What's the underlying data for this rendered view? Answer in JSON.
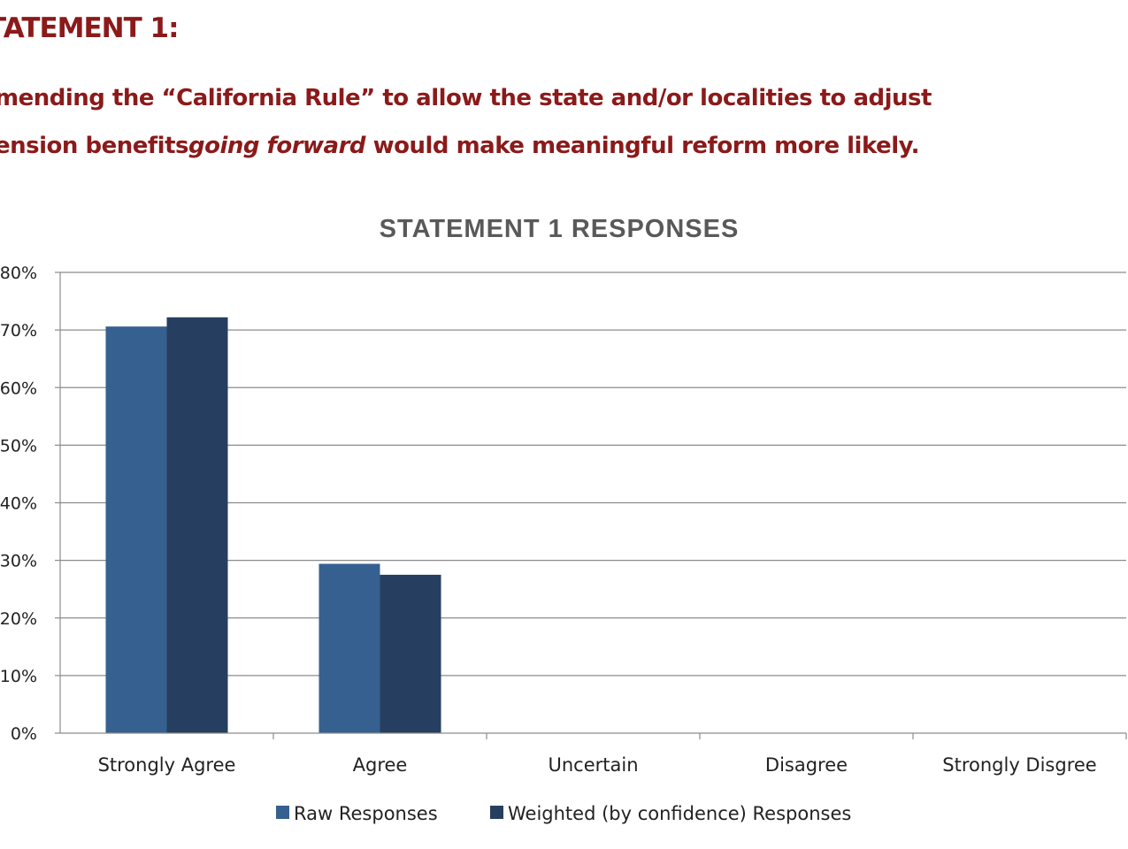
{
  "heading": "TATEMENT 1:",
  "statement": {
    "line1": "mending the “California Rule” to allow the state and/or localities to adjust",
    "line2_start": "ension benefits",
    "line2_emphasis": "going forward",
    "line2_end": " would make meaningful reform more likely."
  },
  "colors": {
    "heading": "#8b1a1a",
    "raw_series": "#36608f",
    "weighted_series": "#263f60",
    "gridline": "#8c8c8c",
    "chart_title": "#595959"
  },
  "chart_data": {
    "type": "bar",
    "title": "STATEMENT  1 RESPONSES",
    "categories": [
      "Strongly Agree",
      "Agree",
      "Uncertain",
      "Disagree",
      "Strongly Disgree"
    ],
    "series": [
      {
        "name": "Raw Responses",
        "values": [
          70.6,
          29.4,
          0,
          0,
          0
        ]
      },
      {
        "name": "Weighted (by confidence) Responses",
        "values": [
          72.2,
          27.5,
          0,
          0,
          0
        ]
      }
    ],
    "ylim": [
      0,
      80
    ],
    "yticks": [
      0,
      10,
      20,
      30,
      40,
      50,
      60,
      70,
      80
    ],
    "ytick_labels": [
      "0%",
      "10%",
      "20%",
      "30%",
      "40%",
      "50%",
      "60%",
      "70%",
      "80%"
    ],
    "xlabel": "",
    "ylabel": "",
    "grid": true,
    "legend_position": "bottom"
  }
}
